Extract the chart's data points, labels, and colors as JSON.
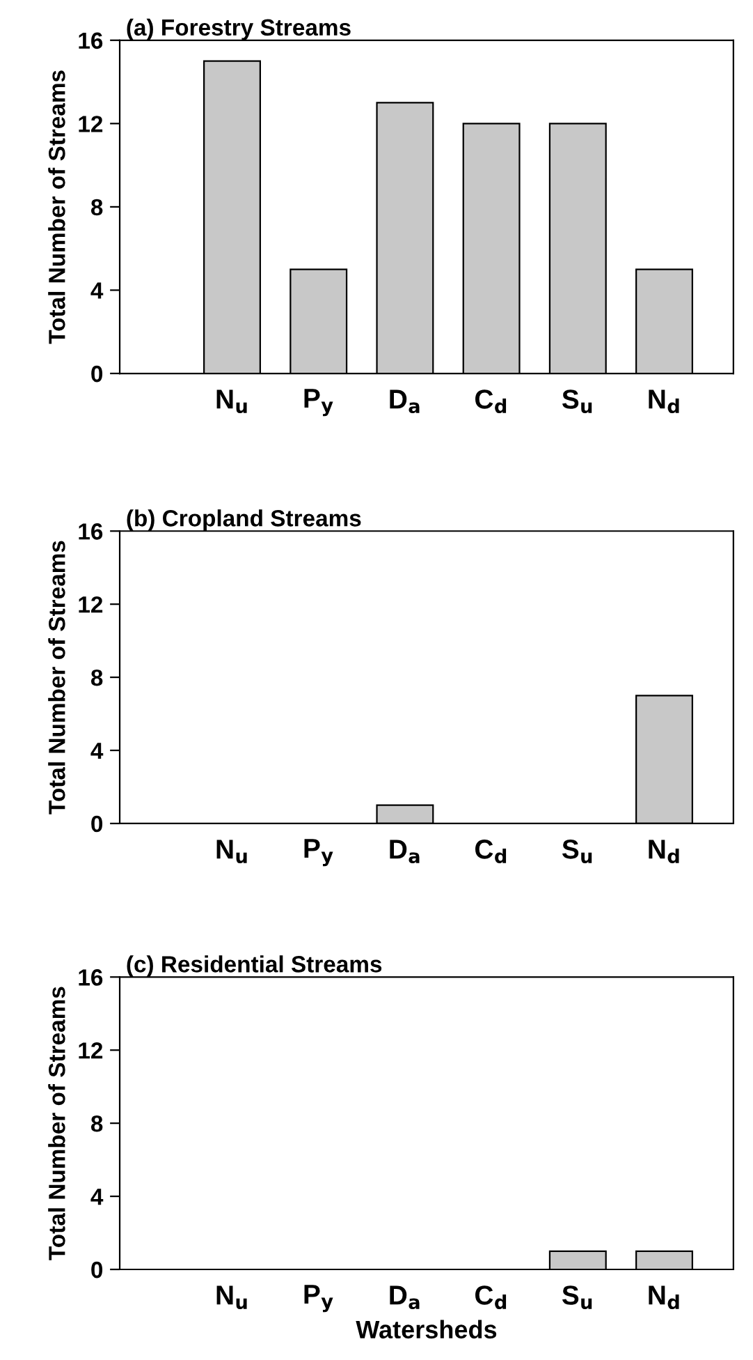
{
  "chart_data": [
    {
      "type": "bar",
      "title": "(a) Forestry Streams",
      "ylabel": "Total Number of Streams",
      "categories": [
        "N$_{u}$",
        "P$_{y}$",
        "D$_{a}$",
        "C$_{d}$",
        "S$_{u}$",
        "N$_{d}$"
      ],
      "values": [
        15,
        5,
        13,
        12,
        12,
        5
      ],
      "color": "#c8c8c8",
      "ylim": [
        0,
        16
      ],
      "yticks": [
        0,
        4,
        8,
        12,
        16
      ]
    },
    {
      "type": "bar",
      "title": "(b) Cropland Streams",
      "ylabel": "Total Number of Streams",
      "categories": [
        "N$_{u}$",
        "P$_{y}$",
        "D$_{a}$",
        "C$_{d}$",
        "S$_{u}$",
        "N$_{d}$"
      ],
      "values": [
        0,
        0,
        1,
        0,
        0,
        7
      ],
      "color": "#c8c8c8",
      "ylim": [
        0,
        16
      ],
      "yticks": [
        0,
        4,
        8,
        12,
        16
      ]
    },
    {
      "type": "bar",
      "title": "(c) Residential Streams",
      "ylabel": "Total Number of Streams",
      "xlabel": "Watersheds",
      "categories": [
        "N$_{u}$",
        "P$_{y}$",
        "D$_{a}$",
        "C$_{d}$",
        "S$_{u}$",
        "N$_{d}$"
      ],
      "values": [
        0,
        0,
        0,
        0,
        1,
        1
      ],
      "color": "#c8c8c8",
      "ylim": [
        0,
        16
      ],
      "yticks": [
        0,
        4,
        8,
        12,
        16
      ]
    }
  ]
}
